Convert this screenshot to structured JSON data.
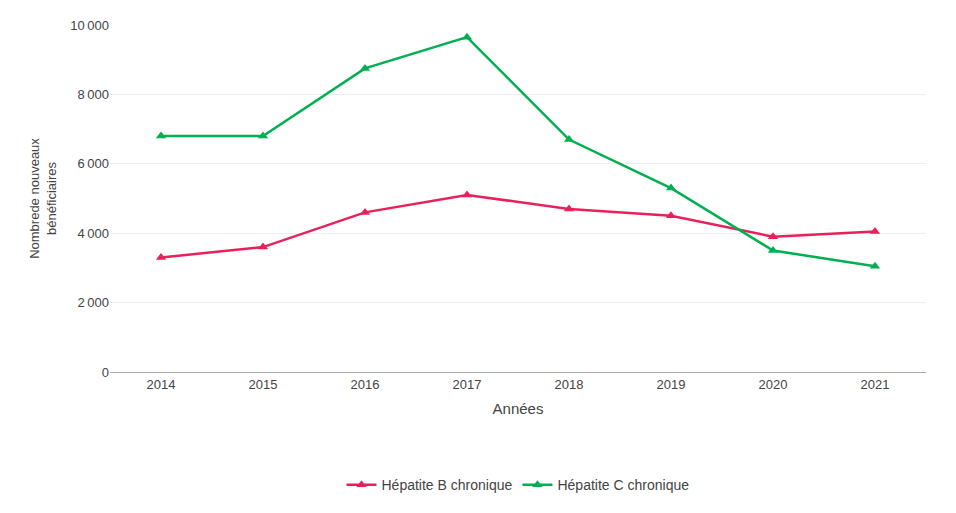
{
  "chart_data": {
    "type": "line",
    "xlabel": "Années",
    "ylabel": "Nombrede nouveaux\nbénéficiaires",
    "x": [
      2014,
      2015,
      2016,
      2017,
      2018,
      2019,
      2020,
      2021
    ],
    "series": [
      {
        "name": "Hépatite B chronique",
        "color": "#e8215a",
        "marker": "triangle-up",
        "values": [
          3300,
          3600,
          4600,
          5100,
          4700,
          4500,
          3900,
          4050
        ]
      },
      {
        "name": "Hépatite C chronique",
        "color": "#00b050",
        "marker": "triangle-up",
        "values": [
          6800,
          6800,
          8750,
          9650,
          6700,
          5300,
          3500,
          3050
        ]
      }
    ],
    "xlim": [
      2013.5,
      2021.5
    ],
    "xticks": [
      2014,
      2015,
      2016,
      2017,
      2018,
      2019,
      2020,
      2021
    ],
    "ylim": [
      0,
      10000
    ],
    "yticks": [
      0,
      {
        "value": 2000,
        "label": "2 000"
      },
      {
        "value": 4000,
        "label": "4 000"
      },
      {
        "value": 6000,
        "label": "6 000"
      },
      {
        "value": 8000,
        "label": "8 000"
      },
      {
        "value": 10000,
        "label": "10 000"
      }
    ],
    "grid": "y",
    "legend": "bottom"
  }
}
